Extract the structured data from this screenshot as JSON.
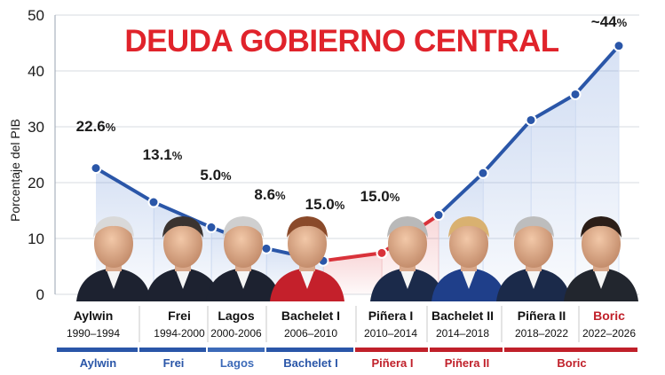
{
  "chart_data": {
    "type": "line",
    "title": "DEUDA GOBIERNO CENTRAL",
    "ylabel": "Porcentaje del PIB",
    "xlabel": "",
    "ylim": [
      0,
      50
    ],
    "yticks": [
      0,
      10,
      20,
      30,
      40,
      50
    ],
    "grid": true,
    "series": [
      {
        "color": "#2a56a8",
        "x": [
          1990,
          1994,
          1998,
          2002,
          2006,
          2010,
          2014,
          2016,
          2018,
          2020,
          2022,
          2025
        ],
        "values": [
          22.6,
          16.5,
          12.0,
          8.0,
          6.0,
          7.0,
          14.0,
          21.5,
          31.0,
          36.0,
          44.0,
          44.0
        ]
      }
    ],
    "points": [
      {
        "v": 22.6,
        "seg": "blue"
      },
      {
        "v": 16.5,
        "seg": "blue"
      },
      {
        "v": 12.0,
        "seg": "blue"
      },
      {
        "v": 8.2,
        "seg": "blue"
      },
      {
        "v": 6.0,
        "seg": "red"
      },
      {
        "v": 7.4,
        "seg": "red"
      },
      {
        "v": 14.2,
        "seg": "blue"
      },
      {
        "v": 21.7,
        "seg": "blue"
      },
      {
        "v": 31.2,
        "seg": "blue"
      },
      {
        "v": 35.8,
        "seg": "blue"
      },
      {
        "v": 44.5,
        "seg": "blue"
      }
    ],
    "data_labels": [
      {
        "value": "22.6",
        "suffix": "%"
      },
      {
        "value": "13.1",
        "suffix": "%"
      },
      {
        "value": "5.0",
        "suffix": "%"
      },
      {
        "value": "8.6",
        "suffix": "%"
      },
      {
        "value": "15.0",
        "suffix": "%"
      },
      {
        "value": "15.0",
        "suffix": "%"
      },
      {
        "value": "~44",
        "suffix": "%"
      }
    ],
    "presidents": [
      {
        "name": "Aylwin",
        "years": "1990–1994",
        "name_color": "#111111"
      },
      {
        "name": "Frei",
        "years": "1994-2000",
        "name_color": "#111111"
      },
      {
        "name": "Lagos",
        "years": "2000-2006",
        "name_color": "#111111"
      },
      {
        "name": "Bachelet I",
        "years": "2006–2010",
        "name_color": "#111111"
      },
      {
        "name": "Piñera I",
        "years": "2010–2014",
        "name_color": "#111111"
      },
      {
        "name": "Bachelet II",
        "years": "2014–2018",
        "name_color": "#111111"
      },
      {
        "name": "Piñera II",
        "years": "2018–2022",
        "name_color": "#111111"
      },
      {
        "name": "Boric",
        "years": "2022–2026",
        "name_color": "#c0202a"
      }
    ],
    "legend_bar": [
      {
        "label": "Aylwin",
        "color": "#2a56a8"
      },
      {
        "label": "Frei",
        "color": "#2a56a8"
      },
      {
        "label": "Lagos",
        "color": "#3c6ab8"
      },
      {
        "label": "Bachelet I",
        "color": "#2a56a8"
      },
      {
        "label": "Piñera I",
        "color": "#c0202a"
      },
      {
        "label": "Piñera II",
        "color": "#c0202a"
      },
      {
        "label": "Boric",
        "color": "#c0202a"
      }
    ],
    "colors": {
      "line_blue": "#2a56a8",
      "line_red": "#d9323a",
      "title_red": "#e0232b",
      "grid": "#d7dbe2"
    }
  }
}
